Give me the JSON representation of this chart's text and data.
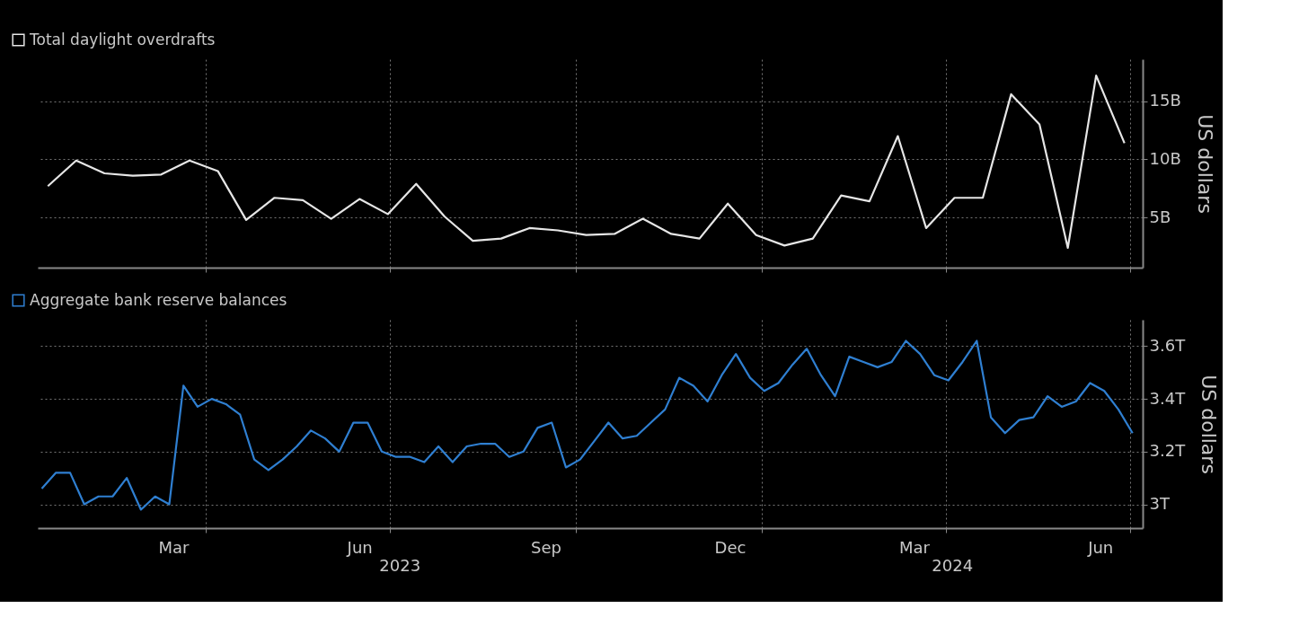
{
  "chart_data": [
    {
      "type": "line",
      "ylabel": "US dollars",
      "legend": "top left",
      "grid": true,
      "tick_labels": "y",
      "xlim": [
        "2023-01-08",
        "2024-07-07"
      ],
      "xticks": [
        {
          "value": "2023-04-01",
          "label": null
        },
        {
          "value": "2023-07-01",
          "label": null
        },
        {
          "value": "2023-10-01",
          "label": null
        },
        {
          "value": "2024-01-01",
          "label": null
        },
        {
          "value": "2024-04-01",
          "label": null
        },
        {
          "value": "2024-07-01",
          "label": null
        }
      ],
      "ylim": [
        0.7,
        18.6
      ],
      "yticks": [
        {
          "value": 5,
          "label": "5B"
        },
        {
          "value": 10,
          "label": "10B"
        },
        {
          "value": 15,
          "label": "15B"
        }
      ],
      "series": [
        {
          "name": "Total daylight overdrafts",
          "color": "#e6e6e6",
          "x": [
            "2023-01-13",
            "2023-01-27",
            "2023-02-10",
            "2023-02-24",
            "2023-03-10",
            "2023-03-24",
            "2023-04-07",
            "2023-04-21",
            "2023-05-05",
            "2023-05-19",
            "2023-06-02",
            "2023-06-16",
            "2023-06-30",
            "2023-07-14",
            "2023-07-28",
            "2023-08-11",
            "2023-08-25",
            "2023-09-08",
            "2023-09-22",
            "2023-10-06",
            "2023-10-20",
            "2023-11-03",
            "2023-11-17",
            "2023-12-01",
            "2023-12-15",
            "2023-12-29",
            "2024-01-12",
            "2024-01-26",
            "2024-02-09",
            "2024-02-23",
            "2024-03-08",
            "2024-03-22",
            "2024-04-05",
            "2024-04-19",
            "2024-05-03",
            "2024-05-17",
            "2024-05-31",
            "2024-06-14",
            "2024-06-28"
          ],
          "values": [
            7.7,
            9.9,
            8.8,
            8.6,
            8.7,
            9.9,
            9.0,
            4.8,
            6.7,
            6.5,
            4.9,
            6.6,
            5.3,
            7.9,
            5.1,
            3.0,
            3.2,
            4.1,
            3.9,
            3.5,
            3.6,
            4.9,
            3.6,
            3.2,
            6.2,
            3.5,
            2.6,
            3.2,
            6.9,
            6.4,
            12.0,
            4.1,
            6.7,
            6.7,
            15.6,
            13.0,
            2.4,
            17.2,
            11.4
          ]
        }
      ]
    },
    {
      "type": "line",
      "ylabel": "US dollars",
      "legend": "top left",
      "grid": true,
      "xlim": [
        "2023-01-08",
        "2024-07-07"
      ],
      "xticks": [
        {
          "value": "2023-03-16",
          "label": "Mar"
        },
        {
          "value": "2023-04-01",
          "label": null
        },
        {
          "value": "2023-06-16",
          "label": "Jun"
        },
        {
          "value": "2023-07-01",
          "label": null
        },
        {
          "value": "2023-09-16",
          "label": "Sep"
        },
        {
          "value": "2023-10-01",
          "label": null
        },
        {
          "value": "2023-12-16",
          "label": "Dec"
        },
        {
          "value": "2024-01-01",
          "label": null
        },
        {
          "value": "2024-03-16",
          "label": "Mar"
        },
        {
          "value": "2024-04-01",
          "label": null
        },
        {
          "value": "2024-06-16",
          "label": "Jun"
        },
        {
          "value": "2024-07-01",
          "label": null
        }
      ],
      "ylim": [
        2.91,
        3.7
      ],
      "yticks": [
        {
          "value": 3,
          "label": "3T"
        },
        {
          "value": 3.2,
          "label": "3.2T"
        },
        {
          "value": 3.4,
          "label": "3.4T"
        },
        {
          "value": 3.6,
          "label": "3.6T"
        }
      ],
      "annotations": [
        "2023",
        "2024"
      ],
      "series": [
        {
          "name": "Aggregate bank reserve balances",
          "color": "#2f7fd1",
          "x": [
            "2023-01-10",
            "2023-01-17",
            "2023-01-24",
            "2023-01-31",
            "2023-02-07",
            "2023-02-14",
            "2023-02-21",
            "2023-02-28",
            "2023-03-07",
            "2023-03-14",
            "2023-03-21",
            "2023-03-28",
            "2023-04-04",
            "2023-04-11",
            "2023-04-18",
            "2023-04-25",
            "2023-05-02",
            "2023-05-09",
            "2023-05-16",
            "2023-05-23",
            "2023-05-30",
            "2023-06-06",
            "2023-06-13",
            "2023-06-20",
            "2023-06-27",
            "2023-07-04",
            "2023-07-11",
            "2023-07-18",
            "2023-07-25",
            "2023-08-01",
            "2023-08-08",
            "2023-08-15",
            "2023-08-22",
            "2023-08-29",
            "2023-09-05",
            "2023-09-12",
            "2023-09-19",
            "2023-09-26",
            "2023-10-03",
            "2023-10-10",
            "2023-10-17",
            "2023-10-24",
            "2023-10-31",
            "2023-11-07",
            "2023-11-14",
            "2023-11-21",
            "2023-11-28",
            "2023-12-05",
            "2023-12-12",
            "2023-12-19",
            "2023-12-26",
            "2024-01-02",
            "2024-01-09",
            "2024-01-16",
            "2024-01-23",
            "2024-01-30",
            "2024-02-06",
            "2024-02-13",
            "2024-02-20",
            "2024-02-27",
            "2024-03-05",
            "2024-03-12",
            "2024-03-19",
            "2024-03-26",
            "2024-04-02",
            "2024-04-09",
            "2024-04-16",
            "2024-04-23",
            "2024-04-30",
            "2024-05-07",
            "2024-05-14",
            "2024-05-21",
            "2024-05-28",
            "2024-06-04",
            "2024-06-11",
            "2024-06-18",
            "2024-06-25",
            "2024-07-02"
          ],
          "values": [
            3.06,
            3.12,
            3.12,
            3.0,
            3.03,
            3.03,
            3.1,
            2.98,
            3.03,
            3.0,
            3.45,
            3.37,
            3.4,
            3.38,
            3.34,
            3.17,
            3.13,
            3.17,
            3.22,
            3.28,
            3.25,
            3.2,
            3.31,
            3.31,
            3.2,
            3.18,
            3.18,
            3.16,
            3.22,
            3.16,
            3.22,
            3.23,
            3.23,
            3.18,
            3.2,
            3.29,
            3.31,
            3.14,
            3.17,
            3.24,
            3.31,
            3.25,
            3.26,
            3.31,
            3.36,
            3.48,
            3.45,
            3.39,
            3.49,
            3.57,
            3.48,
            3.43,
            3.46,
            3.53,
            3.59,
            3.49,
            3.41,
            3.56,
            3.54,
            3.52,
            3.54,
            3.62,
            3.57,
            3.49,
            3.47,
            3.54,
            3.62,
            3.33,
            3.27,
            3.32,
            3.33,
            3.41,
            3.37,
            3.39,
            3.46,
            3.43,
            3.36,
            3.27
          ]
        }
      ]
    }
  ]
}
